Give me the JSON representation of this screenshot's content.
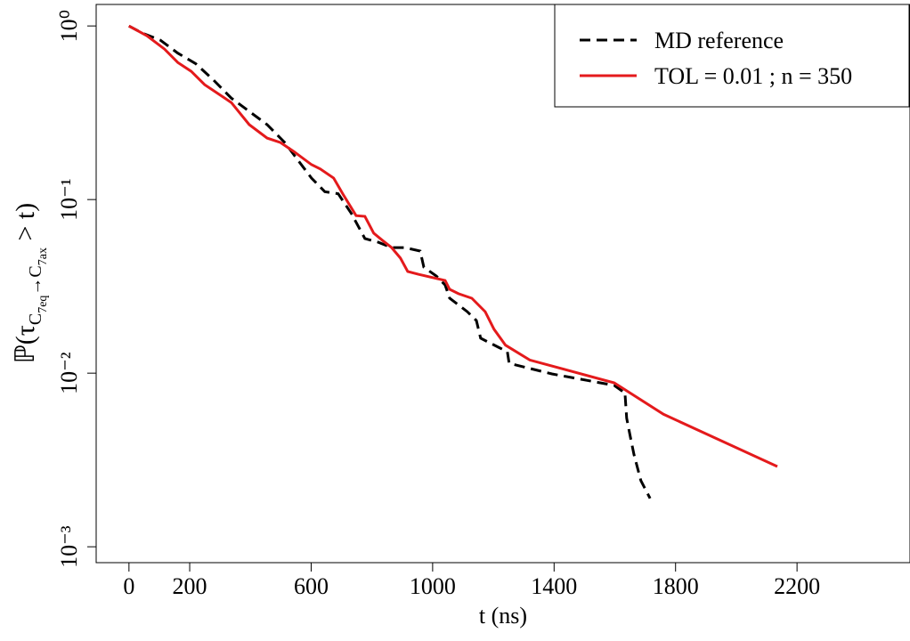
{
  "chart_data": {
    "type": "line",
    "xlabel": "t (ns)",
    "ylabel": [
      "ℙ(τ",
      "C",
      "7eq",
      "→C",
      "7ax",
      " > t)"
    ],
    "log_y": true,
    "legend": "top-right",
    "xlim": [
      -108,
      2572
    ],
    "ylim": [
      0.00081,
      1.33
    ],
    "xticks": [
      0,
      200,
      600,
      1000,
      1400,
      1800,
      2200
    ],
    "yticks": [
      {
        "value": 1,
        "label": "10⁰"
      },
      {
        "value": 0.1,
        "label": "10⁻¹"
      },
      {
        "value": 0.01,
        "label": "10⁻²"
      },
      {
        "value": 0.001,
        "label": "10⁻³"
      }
    ],
    "series": [
      {
        "name": "MD reference",
        "color": "#000000",
        "dash": true,
        "x": [
          0,
          44,
          103,
          161,
          220,
          279,
          337,
          396,
          455,
          513,
          557,
          601,
          645,
          689,
          733,
          777,
          821,
          865,
          909,
          959,
          971,
          1012,
          1041,
          1056,
          1114,
          1144,
          1158,
          1217,
          1246,
          1252,
          1393,
          1598,
          1628,
          1633,
          1639,
          1651,
          1663,
          1686,
          1716
        ],
        "values": [
          1,
          0.91,
          0.828,
          0.697,
          0.606,
          0.487,
          0.384,
          0.322,
          0.27,
          0.213,
          0.168,
          0.133,
          0.111,
          0.108,
          0.0828,
          0.0596,
          0.0568,
          0.0529,
          0.0529,
          0.0505,
          0.0408,
          0.0363,
          0.0322,
          0.027,
          0.0226,
          0.0201,
          0.0159,
          0.0141,
          0.0133,
          0.0114,
          0.0099,
          0.0085,
          0.0078,
          0.0078,
          0.0055,
          0.0043,
          0.0034,
          0.0024,
          0.0019
        ]
      },
      {
        "name": "TOL = 0.01 ; n = 350",
        "color": "#e41a1c",
        "dash": false,
        "x": [
          0,
          59,
          117,
          161,
          205,
          249,
          337,
          396,
          455,
          499,
          543,
          601,
          630,
          674,
          704,
          748,
          777,
          806,
          836,
          865,
          894,
          918,
          953,
          1041,
          1056,
          1085,
          1129,
          1173,
          1202,
          1240,
          1320,
          1598,
          1760,
          2135
        ],
        "values": [
          1,
          0.878,
          0.736,
          0.616,
          0.548,
          0.459,
          0.362,
          0.27,
          0.226,
          0.213,
          0.189,
          0.159,
          0.15,
          0.133,
          0.108,
          0.0808,
          0.08,
          0.064,
          0.058,
          0.0529,
          0.046,
          0.0385,
          0.0371,
          0.0342,
          0.0304,
          0.0287,
          0.027,
          0.0226,
          0.0179,
          0.0145,
          0.0119,
          0.0088,
          0.0058,
          0.0029
        ]
      }
    ]
  }
}
